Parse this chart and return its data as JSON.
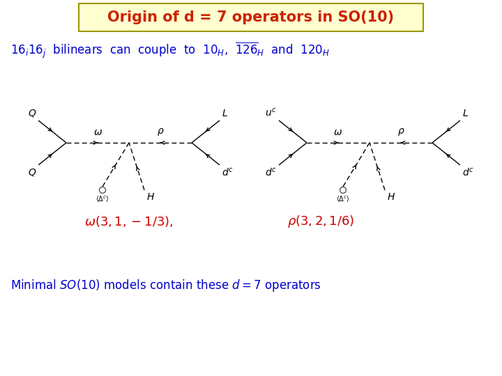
{
  "title": "Origin of d = 7 operators in SO(10)",
  "title_color": "#cc2200",
  "title_bg": "#ffffd0",
  "title_border": "#888800",
  "blue": "#0000cc",
  "red": "#cc0000",
  "black": "#000000"
}
